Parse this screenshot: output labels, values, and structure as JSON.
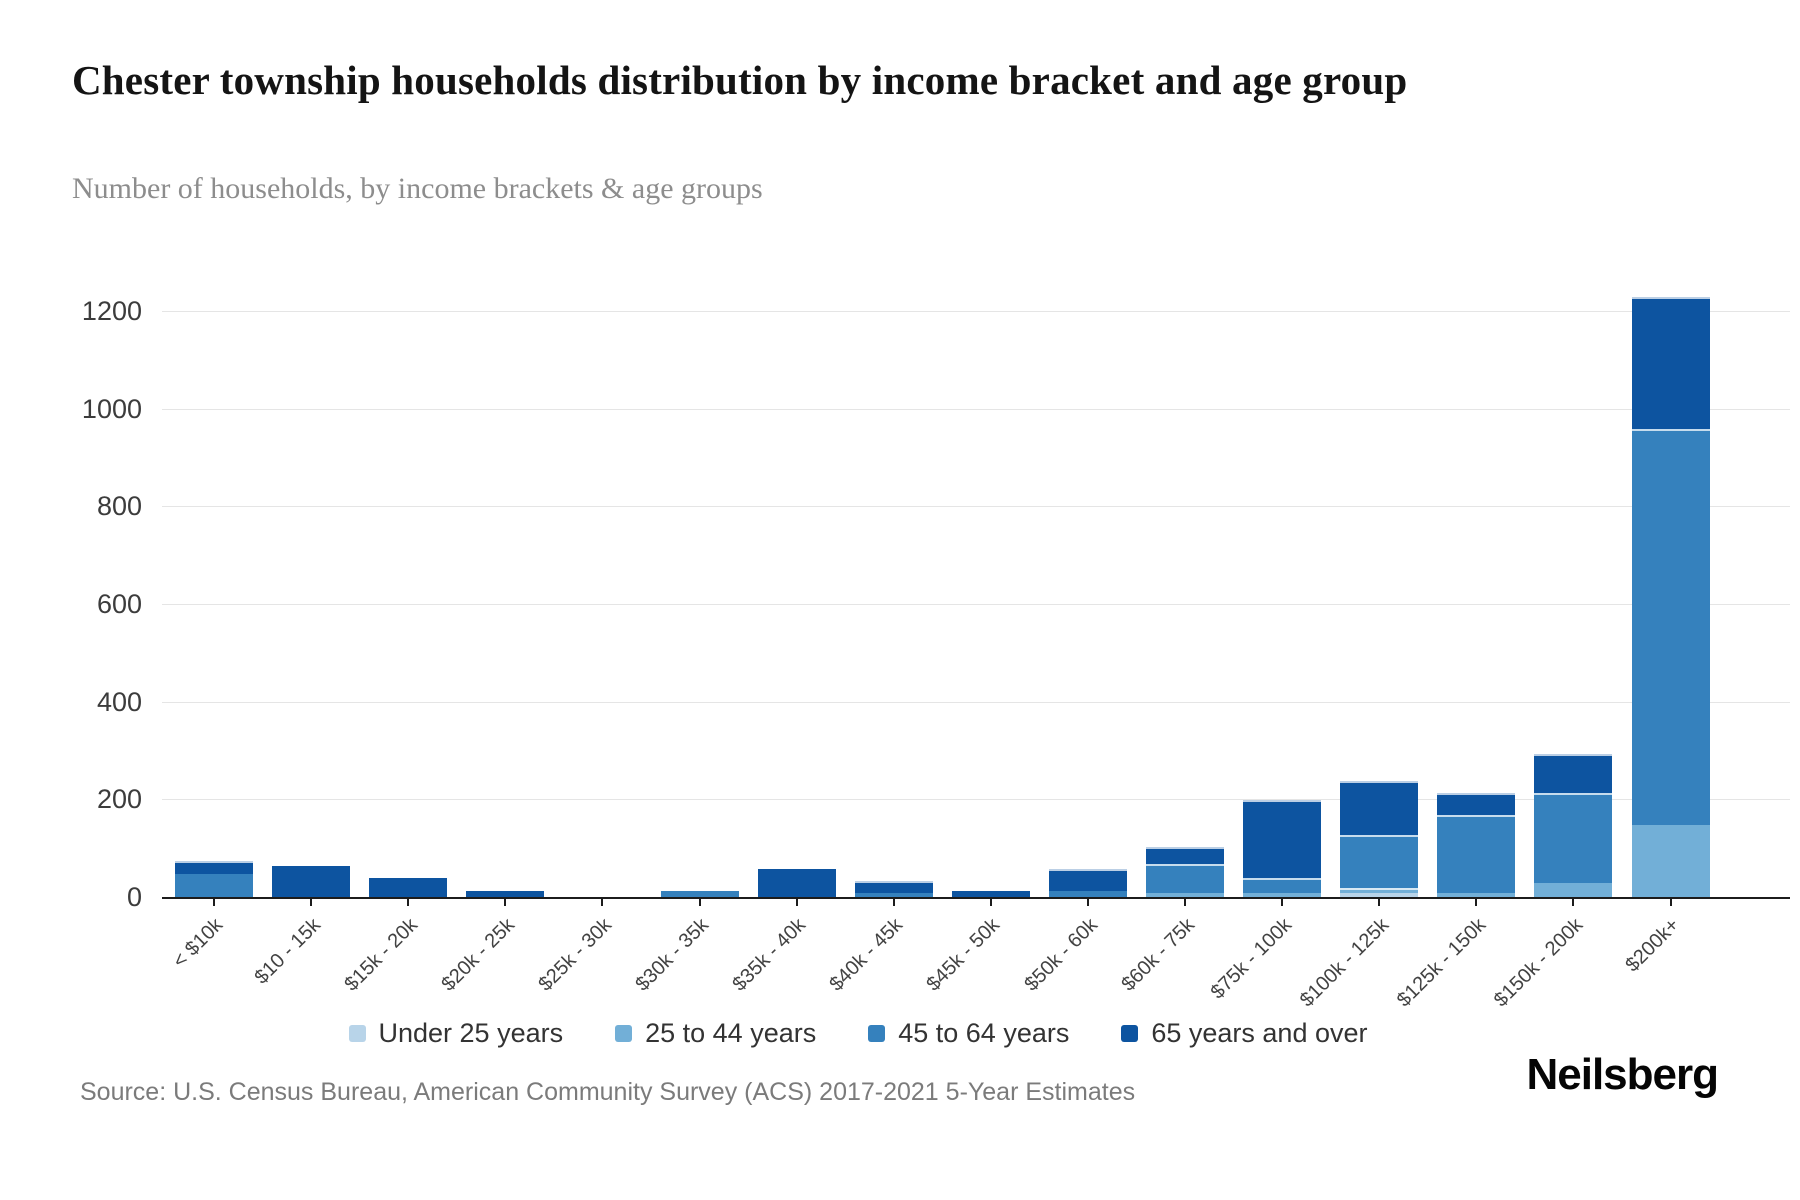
{
  "header": {
    "title": "Chester township households distribution by income bracket and age group",
    "subtitle": "Number of households, by income brackets & age groups"
  },
  "footer": {
    "source": "Source: U.S. Census Bureau, American Community Survey (ACS) 2017-2021 5-Year Estimates",
    "brand": "Neilsberg"
  },
  "colors": {
    "axis": "#1c1c1c",
    "grid": "#e5e5e5",
    "under_25": "#b8d4e9",
    "age_25_44": "#72afd7",
    "age_45_64": "#3581bd",
    "age_65_over": "#0d54a0"
  },
  "chart_data": {
    "type": "bar",
    "stacked": true,
    "title": "Chester township households distribution by income bracket and age group",
    "subtitle": "Number of households, by income brackets & age groups",
    "xlabel": "",
    "ylabel": "",
    "ylim": [
      0,
      1310
    ],
    "yticks": [
      0,
      200,
      400,
      600,
      800,
      1000,
      1200
    ],
    "grid": "horizontal",
    "legend_position": "bottom",
    "categories": [
      "< $10k",
      "$10 - 15k",
      "$15k - 20k",
      "$20k - 25k",
      "$25k - 30k",
      "$30k - 35k",
      "$35k - 40k",
      "$40k - 45k",
      "$45k - 50k",
      "$50k - 60k",
      "$60k - 75k",
      "$75k - 100k",
      "$100k - 125k",
      "$125k - 150k",
      "$150k - 200k",
      "$200k+"
    ],
    "series": [
      {
        "name": "Under 25 years",
        "color": "#b8d4e9",
        "values": [
          0,
          0,
          0,
          0,
          0,
          0,
          0,
          0,
          0,
          0,
          0,
          0,
          10,
          0,
          0,
          0
        ]
      },
      {
        "name": "25 to 44 years",
        "color": "#72afd7",
        "values": [
          0,
          0,
          0,
          0,
          0,
          0,
          0,
          0,
          0,
          0,
          10,
          10,
          10,
          10,
          30,
          150
        ]
      },
      {
        "name": "45 to 64 years",
        "color": "#3581bd",
        "values": [
          50,
          0,
          0,
          0,
          0,
          15,
          0,
          10,
          0,
          15,
          60,
          30,
          110,
          160,
          185,
          810
        ]
      },
      {
        "name": "65 years and over",
        "color": "#0d54a0",
        "values": [
          25,
          65,
          40,
          15,
          0,
          0,
          60,
          25,
          15,
          45,
          35,
          160,
          110,
          45,
          80,
          270
        ]
      }
    ],
    "totals": [
      75,
      65,
      40,
      15,
      0,
      15,
      60,
      35,
      15,
      60,
      105,
      200,
      240,
      215,
      295,
      1230
    ]
  }
}
